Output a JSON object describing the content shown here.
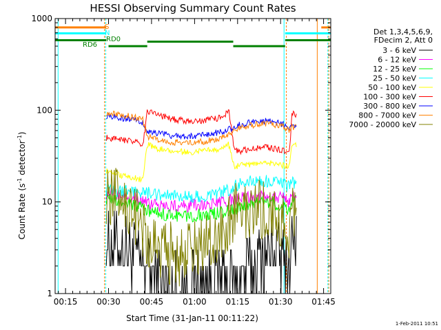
{
  "chart_data": {
    "type": "line",
    "title": "HESSI Observing Summary Count Rates",
    "xlabel": "Start Time (31-Jan-11 00:11:22)",
    "ylabel_main": "Count Rate (s",
    "ylabel_sup1": "-1",
    "ylabel_mid": " detector",
    "ylabel_sup2": "-1",
    "ylabel_end": ")",
    "yscale": "log",
    "ylim": [
      1,
      1000
    ],
    "xlim": [
      11.37,
      107.5
    ],
    "x_ticks": [
      {
        "value": 15,
        "label": "00:15"
      },
      {
        "value": 30,
        "label": "00:30"
      },
      {
        "value": 45,
        "label": "00:45"
      },
      {
        "value": 60,
        "label": "01:00"
      },
      {
        "value": 75,
        "label": "01:15"
      },
      {
        "value": 90,
        "label": "01:30"
      },
      {
        "value": 105,
        "label": "01:45"
      }
    ],
    "y_ticks": [
      {
        "value": 1,
        "label": "1"
      },
      {
        "value": 10,
        "label": "10"
      },
      {
        "value": 100,
        "label": "100"
      },
      {
        "value": 1000,
        "label": "1000"
      }
    ],
    "legend": {
      "placement": "right",
      "header": [
        "Det 1,3,4,5,6,9,",
        "FDecim 2, Att 0"
      ]
    },
    "series": [
      {
        "name": "3 - 6 keV",
        "color": "#000000",
        "x": [
          29.2,
          33,
          37,
          40,
          42,
          43.5,
          47,
          52,
          56,
          60,
          64,
          68,
          72,
          74,
          76,
          80,
          84,
          88,
          91,
          93,
          94,
          95.5
        ],
        "y": [
          4.0,
          3.5,
          3.2,
          2.6,
          2.2,
          1.9,
          1.5,
          1.3,
          1.2,
          1.3,
          1.4,
          1.5,
          1.4,
          1.3,
          1.6,
          2.2,
          2.8,
          3.2,
          2.6,
          1.9,
          4.2,
          4.0
        ]
      },
      {
        "name": "6 - 12 keV",
        "color": "#ff00ff",
        "x": [
          29.2,
          33,
          37,
          40,
          42,
          43.5,
          47,
          52,
          56,
          60,
          64,
          68,
          72,
          74,
          76,
          80,
          84,
          88,
          91,
          93,
          94,
          95.5
        ],
        "y": [
          12.5,
          12,
          11.5,
          11,
          10.2,
          9.5,
          9.2,
          9.0,
          9.0,
          9.1,
          9.3,
          9.6,
          10.2,
          10.5,
          11.0,
          11.5,
          11.8,
          11.5,
          11.0,
          10.0,
          12.0,
          11.5
        ]
      },
      {
        "name": "12 - 25 keV",
        "color": "#00ff00",
        "x": [
          29.2,
          33,
          37,
          40,
          42,
          43.5,
          47,
          52,
          56,
          60,
          64,
          68,
          72,
          74,
          76,
          80,
          84,
          88,
          91,
          93,
          94,
          95.5
        ],
        "y": [
          11.0,
          10.0,
          9.5,
          9.0,
          8.5,
          8.0,
          7.5,
          7.2,
          7.0,
          7.1,
          7.3,
          7.6,
          8.0,
          8.4,
          8.8,
          9.5,
          10.0,
          9.6,
          9.0,
          8.0,
          10.5,
          10.0
        ]
      },
      {
        "name": "25 - 50 keV",
        "color": "#00ffff",
        "x": [
          29.2,
          33,
          37,
          40,
          42,
          43.5,
          47,
          52,
          56,
          60,
          64,
          68,
          72,
          74,
          76,
          80,
          84,
          88,
          91,
          93,
          94,
          95.5
        ],
        "y": [
          13.5,
          13.2,
          13.0,
          12.8,
          12.5,
          12.5,
          12.0,
          11.5,
          11.3,
          11.5,
          11.8,
          12.5,
          13.5,
          15.0,
          16.0,
          16.8,
          17.0,
          16.5,
          15.5,
          14.5,
          16.0,
          16.5
        ]
      },
      {
        "name": "50 - 100 keV",
        "color": "#ffff00",
        "x": [
          29.2,
          33,
          37,
          40,
          42,
          43.5,
          47,
          52,
          56,
          60,
          64,
          68,
          72,
          74,
          76,
          80,
          84,
          88,
          91,
          93,
          94,
          95.5
        ],
        "y": [
          22,
          20,
          19,
          18,
          17,
          42,
          38,
          36,
          35,
          35,
          36,
          38,
          42,
          24,
          25,
          26,
          27,
          26,
          25,
          24,
          44,
          42
        ]
      },
      {
        "name": "100 - 300 keV",
        "color": "#ff0000",
        "x": [
          29.2,
          33,
          37,
          40,
          42,
          43.5,
          47,
          52,
          56,
          60,
          64,
          68,
          72,
          74,
          76,
          80,
          84,
          88,
          91,
          93,
          94,
          95.5
        ],
        "y": [
          50,
          48,
          46,
          44,
          40,
          100,
          88,
          80,
          77,
          76,
          78,
          82,
          95,
          36,
          36,
          38,
          40,
          38,
          36,
          33,
          92,
          88
        ]
      },
      {
        "name": "300 - 800 keV",
        "color": "#0000ff",
        "x": [
          29.2,
          33,
          37,
          40,
          42,
          43.5,
          47,
          52,
          56,
          60,
          64,
          68,
          72,
          74,
          76,
          80,
          84,
          88,
          91,
          93,
          94,
          95.5
        ],
        "y": [
          87,
          84,
          80,
          76,
          72,
          60,
          56,
          53,
          52,
          52,
          54,
          57,
          62,
          66,
          70,
          74,
          77,
          74,
          70,
          64,
          70,
          68
        ]
      },
      {
        "name": "800 - 7000 keV",
        "color": "#ff8000",
        "x": [
          29.2,
          33,
          37,
          40,
          42,
          43.5,
          47,
          52,
          56,
          60,
          64,
          68,
          72,
          74,
          76,
          80,
          84,
          88,
          91,
          93,
          94,
          95.5
        ],
        "y": [
          93,
          90,
          86,
          82,
          78,
          52,
          48,
          45,
          44,
          44,
          46,
          49,
          54,
          59,
          64,
          69,
          72,
          70,
          66,
          61,
          66,
          64
        ]
      },
      {
        "name": "7000 - 20000 keV",
        "color": "#808000",
        "x": [
          29.2,
          33,
          37,
          40,
          42,
          43.5,
          47,
          52,
          56,
          60,
          64,
          68,
          72,
          74,
          76,
          80,
          84,
          88,
          91,
          93,
          94,
          95.5
        ],
        "y": [
          12.5,
          11.0,
          9.0,
          7.0,
          5.5,
          4.3,
          3.3,
          2.7,
          2.6,
          2.8,
          3.5,
          4.8,
          6.5,
          7.6,
          8.5,
          8.8,
          8.2,
          7.0,
          5.8,
          4.6,
          9.0,
          8.6
        ]
      }
    ],
    "flag_lines": [
      {
        "label": "S",
        "color": "#ff8000",
        "y": 800,
        "segments": [
          [
            11.37,
            29.2
          ],
          [
            104.2,
            107.5
          ]
        ]
      },
      {
        "label": "N",
        "color": "#00ffff",
        "y": 690,
        "segments": [
          [
            11.37,
            29.2
          ],
          [
            91.6,
            107.5
          ]
        ]
      },
      {
        "label": "RD0",
        "color": "#008000",
        "y": 580,
        "segments": [
          [
            11.37,
            29.2
          ],
          [
            91.6,
            107.5
          ]
        ]
      },
      {
        "label": "RD6",
        "color": "#008000",
        "y": 500,
        "segments": [
          [
            30,
            43.5
          ],
          [
            43.5,
            73.5
          ],
          [
            73.5,
            91.6
          ]
        ]
      }
    ],
    "flag_label_positions_note": "",
    "vertical_markers": [
      {
        "x": 12.4,
        "color": "#00ffff",
        "dashed": false
      },
      {
        "x": 28.6,
        "color": "#ff8000",
        "dashed": true
      },
      {
        "x": 29.0,
        "color": "#00ffff",
        "dashed": true
      },
      {
        "x": 91.2,
        "color": "#00ffff",
        "dashed": false
      },
      {
        "x": 92.0,
        "color": "#ff8000",
        "dashed": true
      },
      {
        "x": 102.8,
        "color": "#ff8000",
        "dashed": false
      },
      {
        "x": 106.5,
        "color": "#00ffff",
        "dashed": true
      },
      {
        "x": 106.8,
        "color": "#ff8000",
        "dashed": true
      }
    ],
    "timestamp": "1-Feb-2011 10:51"
  }
}
